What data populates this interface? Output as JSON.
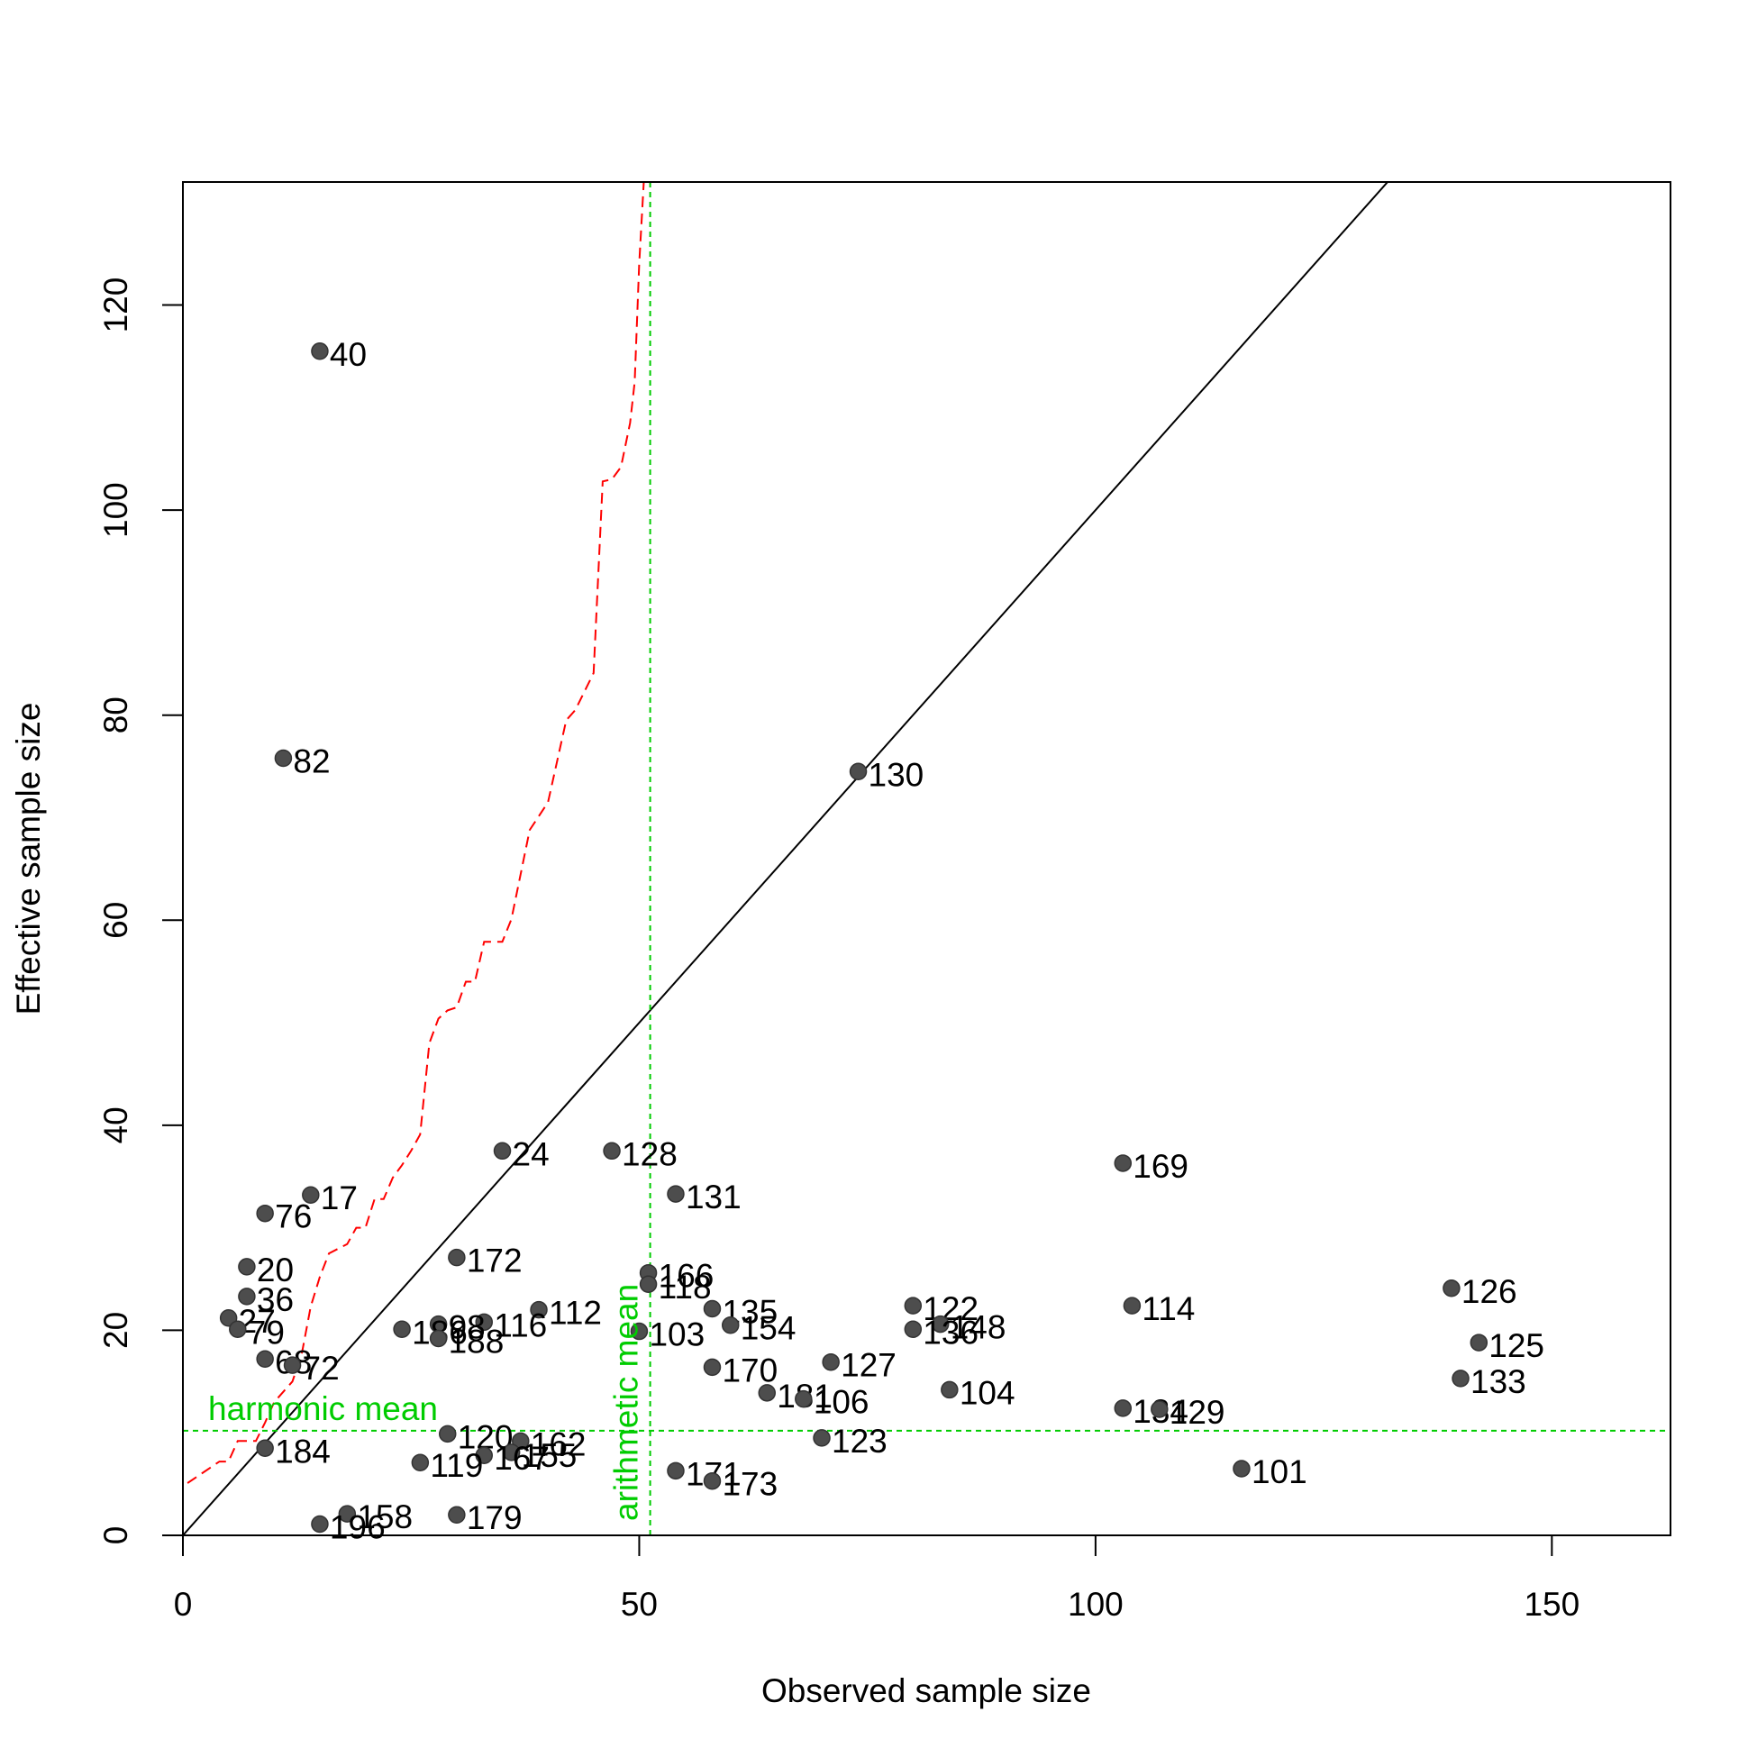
{
  "chart_data": {
    "type": "scatter",
    "xlabel": "Observed sample size",
    "ylabel": "Effective sample size",
    "xlim": [
      0,
      163
    ],
    "ylim": [
      0,
      132
    ],
    "xticks": [
      "0",
      "50",
      "100",
      "150"
    ],
    "xtick_values": [
      0,
      50,
      100,
      150
    ],
    "yticks": [
      "0",
      "20",
      "40",
      "60",
      "80",
      "100",
      "120"
    ],
    "ytick_values": [
      0,
      20,
      40,
      60,
      80,
      100,
      120
    ],
    "point_color": "#4d4d4d",
    "points": [
      {
        "label": "40",
        "x": 15,
        "y": 115.5
      },
      {
        "label": "82",
        "x": 11,
        "y": 75.8
      },
      {
        "label": "130",
        "x": 74,
        "y": 74.5
      },
      {
        "label": "24",
        "x": 35,
        "y": 37.5
      },
      {
        "label": "128",
        "x": 47,
        "y": 37.5
      },
      {
        "label": "169",
        "x": 103,
        "y": 36.3
      },
      {
        "label": "17",
        "x": 14,
        "y": 33.2
      },
      {
        "label": "131",
        "x": 54,
        "y": 33.3
      },
      {
        "label": "76",
        "x": 9,
        "y": 31.4
      },
      {
        "label": "172",
        "x": 30,
        "y": 27.1
      },
      {
        "label": "20",
        "x": 7,
        "y": 26.2
      },
      {
        "label": "166",
        "x": 51,
        "y": 25.6
      },
      {
        "label": "118",
        "x": 51,
        "y": 24.5
      },
      {
        "label": "126",
        "x": 139,
        "y": 24.1
      },
      {
        "label": "36",
        "x": 7,
        "y": 23.3
      },
      {
        "label": "122",
        "x": 80,
        "y": 22.4
      },
      {
        "label": "114",
        "x": 104,
        "y": 22.4
      },
      {
        "label": "135",
        "x": 58,
        "y": 22.1
      },
      {
        "label": "112",
        "x": 39,
        "y": 22.0
      },
      {
        "label": "27",
        "x": 5,
        "y": 21.2
      },
      {
        "label": "116",
        "x": 33,
        "y": 20.8
      },
      {
        "label": "98",
        "x": 28,
        "y": 20.6
      },
      {
        "label": "148",
        "x": 83,
        "y": 20.6
      },
      {
        "label": "154",
        "x": 60,
        "y": 20.5
      },
      {
        "label": "79",
        "x": 6,
        "y": 20.1
      },
      {
        "label": "186",
        "x": 24,
        "y": 20.1
      },
      {
        "label": "136",
        "x": 80,
        "y": 20.1
      },
      {
        "label": "103",
        "x": 50,
        "y": 19.9
      },
      {
        "label": "188",
        "x": 28,
        "y": 19.2
      },
      {
        "label": "125",
        "x": 142,
        "y": 18.8
      },
      {
        "label": "68",
        "x": 9,
        "y": 17.2
      },
      {
        "label": "127",
        "x": 71,
        "y": 16.9
      },
      {
        "label": "72",
        "x": 12,
        "y": 16.6
      },
      {
        "label": "170",
        "x": 58,
        "y": 16.4
      },
      {
        "label": "133",
        "x": 140,
        "y": 15.3
      },
      {
        "label": "104",
        "x": 84,
        "y": 14.2
      },
      {
        "label": "181",
        "x": 64,
        "y": 13.9
      },
      {
        "label": "106",
        "x": 68,
        "y": 13.3
      },
      {
        "label": "134",
        "x": 103,
        "y": 12.4
      },
      {
        "label": "129",
        "x": 107,
        "y": 12.3
      },
      {
        "label": "120",
        "x": 29,
        "y": 9.9
      },
      {
        "label": "123",
        "x": 70,
        "y": 9.5
      },
      {
        "label": "162",
        "x": 37,
        "y": 9.2
      },
      {
        "label": "184",
        "x": 9,
        "y": 8.5
      },
      {
        "label": "155",
        "x": 36,
        "y": 8.1
      },
      {
        "label": "167",
        "x": 33,
        "y": 7.8
      },
      {
        "label": "119",
        "x": 26,
        "y": 7.1
      },
      {
        "label": "101",
        "x": 116,
        "y": 6.5
      },
      {
        "label": "171",
        "x": 54,
        "y": 6.3
      },
      {
        "label": "173",
        "x": 58,
        "y": 5.3
      },
      {
        "label": "158",
        "x": 18,
        "y": 2.1
      },
      {
        "label": "179",
        "x": 30,
        "y": 2.0
      },
      {
        "label": "196",
        "x": 15,
        "y": 1.1
      }
    ],
    "reference_lines": {
      "identity_color": "#000000",
      "harmonic_mean": {
        "label": "harmonic mean",
        "value": 10.2,
        "color": "#00cc00"
      },
      "arithmetic_mean": {
        "label": "arithmetic mean",
        "value": 51.2,
        "color": "#00cc00"
      },
      "upper_bound_color": "#ff0000",
      "upper_bound_curve": [
        [
          0.5,
          5.1
        ],
        [
          3,
          6.6
        ],
        [
          4,
          7.2
        ],
        [
          5,
          7.2
        ],
        [
          6,
          9.2
        ],
        [
          8,
          9.2
        ],
        [
          9,
          11.0
        ],
        [
          10,
          13.0
        ],
        [
          12,
          15.0
        ],
        [
          13,
          17.6
        ],
        [
          14,
          22.3
        ],
        [
          15,
          25.2
        ],
        [
          16,
          27.5
        ],
        [
          18,
          28.4
        ],
        [
          19,
          30.0
        ],
        [
          20,
          30.0
        ],
        [
          21,
          32.8
        ],
        [
          22,
          32.8
        ],
        [
          23,
          34.9
        ],
        [
          24,
          36.1
        ],
        [
          25,
          37.5
        ],
        [
          26,
          39.1
        ],
        [
          27,
          48.0
        ],
        [
          28,
          50.4
        ],
        [
          29,
          51.2
        ],
        [
          30,
          51.5
        ],
        [
          31,
          54.0
        ],
        [
          32,
          54.0
        ],
        [
          33,
          57.9
        ],
        [
          35,
          57.9
        ],
        [
          36,
          60.1
        ],
        [
          38,
          68.8
        ],
        [
          40,
          71.5
        ],
        [
          42,
          79.5
        ],
        [
          43,
          80.5
        ],
        [
          45,
          84.1
        ],
        [
          46,
          102.8
        ],
        [
          47,
          103.0
        ],
        [
          48,
          104.2
        ],
        [
          49,
          108.5
        ],
        [
          49.5,
          112.5
        ],
        [
          50,
          124.0
        ],
        [
          50.5,
          132.0
        ]
      ]
    }
  }
}
